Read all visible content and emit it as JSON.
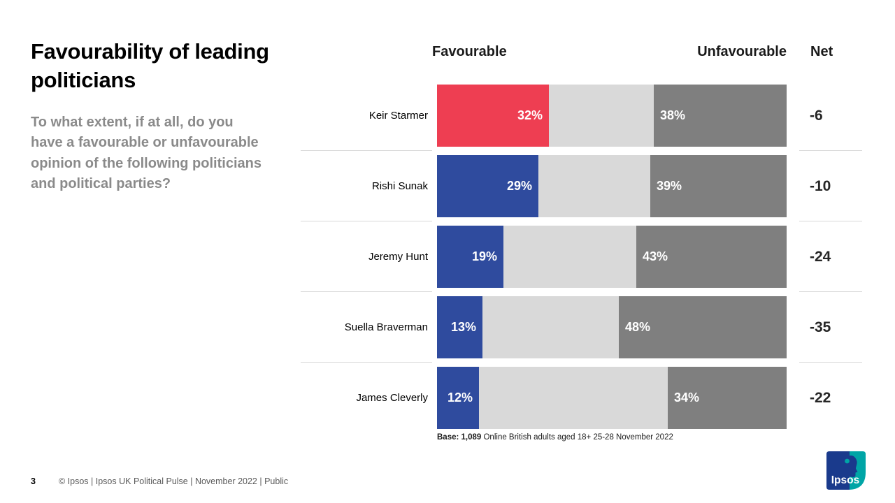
{
  "header": {
    "title": "Favourability of leading politicians",
    "question": "To what extent, if at all, do you have a favourable or unfavourable opinion of the following politicians and political parties?"
  },
  "columns": {
    "favourable": "Favourable",
    "unfavourable": "Unfavourable",
    "net": "Net"
  },
  "chart_data": {
    "type": "bar",
    "orientation": "horizontal-stacked",
    "axis_range_percent": [
      0,
      100
    ],
    "legend_position": "column-headers-top",
    "grid": false,
    "categories": [
      "Keir Starmer",
      "Rishi Sunak",
      "Jeremy Hunt",
      "Suella Braverman",
      "James Cleverly"
    ],
    "series": [
      {
        "name": "Favourable",
        "values": [
          32,
          29,
          19,
          13,
          12
        ]
      },
      {
        "name": "Neither / unlabelled middle segment",
        "values": [
          30,
          32,
          38,
          39,
          54
        ]
      },
      {
        "name": "Unfavourable",
        "values": [
          38,
          39,
          43,
          48,
          34
        ]
      }
    ],
    "net_values": [
      -6,
      -10,
      -24,
      -35,
      -22
    ],
    "politicians": [
      {
        "name": "Keir Starmer",
        "favourable": 32,
        "favourable_label": "32%",
        "unfavourable": 38,
        "unfavourable_label": "38%",
        "net": "-6",
        "bar_color": "#ee3e52"
      },
      {
        "name": "Rishi Sunak",
        "favourable": 29,
        "favourable_label": "29%",
        "unfavourable": 39,
        "unfavourable_label": "39%",
        "net": "-10",
        "bar_color": "#2f4b9e"
      },
      {
        "name": "Jeremy Hunt",
        "favourable": 19,
        "favourable_label": "19%",
        "unfavourable": 43,
        "unfavourable_label": "43%",
        "net": "-24",
        "bar_color": "#2f4b9e"
      },
      {
        "name": "Suella Braverman",
        "favourable": 13,
        "favourable_label": "13%",
        "unfavourable": 48,
        "unfavourable_label": "48%",
        "net": "-35",
        "bar_color": "#2f4b9e"
      },
      {
        "name": "James Cleverly",
        "favourable": 12,
        "favourable_label": "12%",
        "unfavourable": 34,
        "unfavourable_label": "34%",
        "net": "-22",
        "bar_color": "#2f4b9e"
      }
    ],
    "colors": {
      "favourable_labour": "#ee3e52",
      "favourable_conservative": "#2f4b9e",
      "middle_segment": "#d9d9d9",
      "unfavourable": "#7f7f7f",
      "separator": "#d9d9d9"
    }
  },
  "base_note": {
    "bold_part": "Base: 1,089",
    "rest_part": " Online British adults aged 18+ 25-28 November 2022"
  },
  "footer": {
    "page_number": "3",
    "text": "© Ipsos |  Ipsos UK Political Pulse | November  2022 | Public"
  },
  "logo": {
    "text": "Ipsos",
    "navy": "#1a3a8c",
    "teal": "#00a5a6"
  }
}
